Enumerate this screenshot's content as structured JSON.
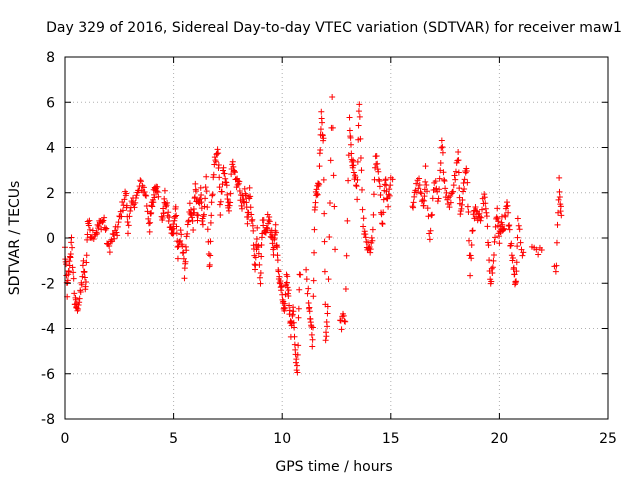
{
  "chart_data": {
    "type": "scatter",
    "title": "Day 329 of 2016, Sidereal Day-to-day VTEC variation (SDTVAR) for receiver maw1",
    "xlabel": "GPS time / hours",
    "ylabel": "SDTVAR / TECUs",
    "xlim": [
      0,
      25
    ],
    "ylim": [
      -8,
      8
    ],
    "xticks": [
      0,
      5,
      10,
      15,
      20,
      25
    ],
    "yticks": [
      -8,
      -6,
      -4,
      -2,
      0,
      2,
      4,
      6,
      8
    ],
    "grid": true,
    "marker": "+",
    "color": "#ff0000",
    "trace": [
      [
        0.0,
        -0.5
      ],
      [
        0.1,
        -2.4
      ],
      [
        0.2,
        -1.2
      ],
      [
        0.3,
        -0.2
      ],
      [
        0.45,
        -2.8
      ],
      [
        0.55,
        -3.1
      ],
      [
        0.7,
        -2.6
      ],
      [
        0.85,
        -1.2
      ],
      [
        0.95,
        -2.2
      ],
      [
        1.05,
        0.8
      ],
      [
        1.2,
        0.2
      ],
      [
        1.45,
        0.3
      ],
      [
        1.6,
        0.6
      ],
      [
        1.8,
        0.8
      ],
      [
        2.0,
        -0.5
      ],
      [
        2.2,
        0.0
      ],
      [
        2.4,
        0.3
      ],
      [
        2.6,
        1.2
      ],
      [
        2.8,
        2.0
      ],
      [
        2.9,
        0.5
      ],
      [
        3.1,
        1.5
      ],
      [
        3.3,
        1.8
      ],
      [
        3.5,
        2.4
      ],
      [
        3.7,
        2.0
      ],
      [
        3.9,
        0.5
      ],
      [
        4.0,
        1.4
      ],
      [
        4.1,
        2.0
      ],
      [
        4.2,
        2.5
      ],
      [
        4.35,
        1.3
      ],
      [
        4.5,
        0.9
      ],
      [
        4.6,
        1.8
      ],
      [
        4.75,
        1.0
      ],
      [
        4.9,
        0.2
      ],
      [
        5.0,
        0.5
      ],
      [
        5.1,
        1.3
      ],
      [
        5.2,
        -0.8
      ],
      [
        5.35,
        0.3
      ],
      [
        5.5,
        -1.5
      ],
      [
        5.6,
        -0.2
      ],
      [
        5.75,
        1.3
      ],
      [
        5.9,
        0.6
      ],
      [
        6.0,
        2.2
      ],
      [
        6.1,
        1.0
      ],
      [
        6.25,
        2.0
      ],
      [
        6.35,
        0.4
      ],
      [
        6.5,
        2.8
      ],
      [
        6.65,
        -1.5
      ],
      [
        6.75,
        1.5
      ],
      [
        6.9,
        3.5
      ],
      [
        7.05,
        3.8
      ],
      [
        7.15,
        1.2
      ],
      [
        7.3,
        3.0
      ],
      [
        7.45,
        2.2
      ],
      [
        7.55,
        1.2
      ],
      [
        7.7,
        3.2
      ],
      [
        7.85,
        2.5
      ],
      [
        8.0,
        2.4
      ],
      [
        8.15,
        1.5
      ],
      [
        8.3,
        2.0
      ],
      [
        8.4,
        0.8
      ],
      [
        8.5,
        2.0
      ],
      [
        8.65,
        0.5
      ],
      [
        8.75,
        -1.2
      ],
      [
        8.85,
        0.2
      ],
      [
        9.0,
        -1.8
      ],
      [
        9.1,
        0.8
      ],
      [
        9.25,
        0.3
      ],
      [
        9.35,
        0.9
      ],
      [
        9.5,
        0.2
      ],
      [
        9.6,
        -0.5
      ],
      [
        9.7,
        0.5
      ],
      [
        9.8,
        -1.2
      ],
      [
        9.9,
        -2.0
      ],
      [
        10.0,
        -2.5
      ],
      [
        10.1,
        -3.5
      ],
      [
        10.2,
        -1.6
      ],
      [
        10.3,
        -2.5
      ],
      [
        10.4,
        -4.2
      ],
      [
        10.5,
        -3.0
      ],
      [
        10.6,
        -5.2
      ],
      [
        10.7,
        -5.8
      ],
      [
        10.8,
        -1.8
      ],
      [
        11.0,
        -0.6
      ],
      [
        11.2,
        -2.5
      ],
      [
        11.3,
        -3.5
      ],
      [
        11.4,
        -4.7
      ],
      [
        11.5,
        1.5
      ],
      [
        11.6,
        2.0
      ],
      [
        11.7,
        2.5
      ],
      [
        11.8,
        5.5
      ],
      [
        11.9,
        4.2
      ],
      [
        12.0,
        -4.6
      ],
      [
        12.1,
        -3.2
      ],
      [
        12.3,
        6.4
      ],
      [
        12.5,
        -4.1
      ],
      [
        12.7,
        -3.8
      ],
      [
        12.9,
        -3.5
      ],
      [
        13.1,
        5.2
      ],
      [
        13.2,
        3.5
      ],
      [
        13.3,
        3.0
      ],
      [
        13.45,
        2.0
      ],
      [
        13.55,
        6.1
      ],
      [
        13.7,
        1.0
      ],
      [
        13.85,
        -0.2
      ],
      [
        14.0,
        -0.6
      ],
      [
        14.15,
        -0.2
      ],
      [
        14.3,
        3.6
      ],
      [
        14.45,
        2.8
      ],
      [
        14.6,
        0.5
      ],
      [
        14.75,
        2.8
      ],
      [
        14.85,
        1.5
      ],
      [
        15.0,
        2.4
      ],
      [
        15.5,
        2.6
      ],
      [
        15.8,
        2.2
      ],
      [
        15.95,
        0.8
      ],
      [
        16.1,
        2.1
      ],
      [
        16.3,
        2.4
      ],
      [
        16.5,
        1.2
      ],
      [
        16.6,
        3.0
      ],
      [
        16.8,
        -0.2
      ],
      [
        17.0,
        2.6
      ],
      [
        17.2,
        1.5
      ],
      [
        17.35,
        4.2
      ],
      [
        17.5,
        2.2
      ],
      [
        17.7,
        1.5
      ],
      [
        17.9,
        2.4
      ],
      [
        18.1,
        3.8
      ],
      [
        18.2,
        1.0
      ],
      [
        18.35,
        2.2
      ],
      [
        18.5,
        3.2
      ],
      [
        18.65,
        -1.4
      ],
      [
        18.8,
        1.0
      ],
      [
        18.95,
        1.2
      ],
      [
        19.1,
        0.8
      ],
      [
        19.3,
        1.9
      ],
      [
        19.45,
        0.5
      ],
      [
        19.6,
        -2.0
      ],
      [
        19.75,
        -0.5
      ],
      [
        19.9,
        1.2
      ],
      [
        20.0,
        0.0
      ],
      [
        20.1,
        0.8
      ],
      [
        20.2,
        0.2
      ],
      [
        20.35,
        1.8
      ],
      [
        20.5,
        -0.2
      ],
      [
        20.65,
        -1.2
      ],
      [
        20.75,
        -2.2
      ],
      [
        20.85,
        0.6
      ],
      [
        21.1,
        -0.8
      ],
      [
        21.7,
        -0.6
      ],
      [
        22.2,
        -0.4
      ],
      [
        22.6,
        -1.6
      ],
      [
        22.75,
        2.4
      ],
      [
        22.85,
        1.0
      ]
    ],
    "gaps": [
      [
        4.3,
        4.45
      ],
      [
        10.85,
        11.1
      ],
      [
        12.45,
        12.65
      ],
      [
        15.1,
        16.0
      ],
      [
        21.2,
        21.5
      ],
      [
        22.0,
        22.5
      ]
    ]
  }
}
